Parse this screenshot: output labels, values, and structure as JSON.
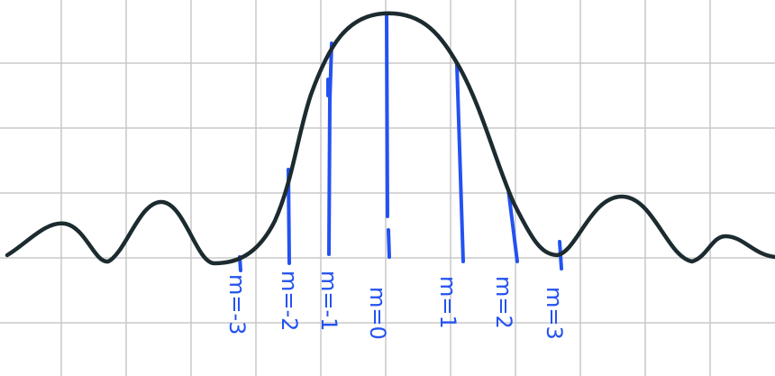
{
  "labels": [
    "m=-3",
    "m=-2",
    "m=-1",
    "m=0",
    "m=1",
    "m=2",
    "m=3"
  ]
}
